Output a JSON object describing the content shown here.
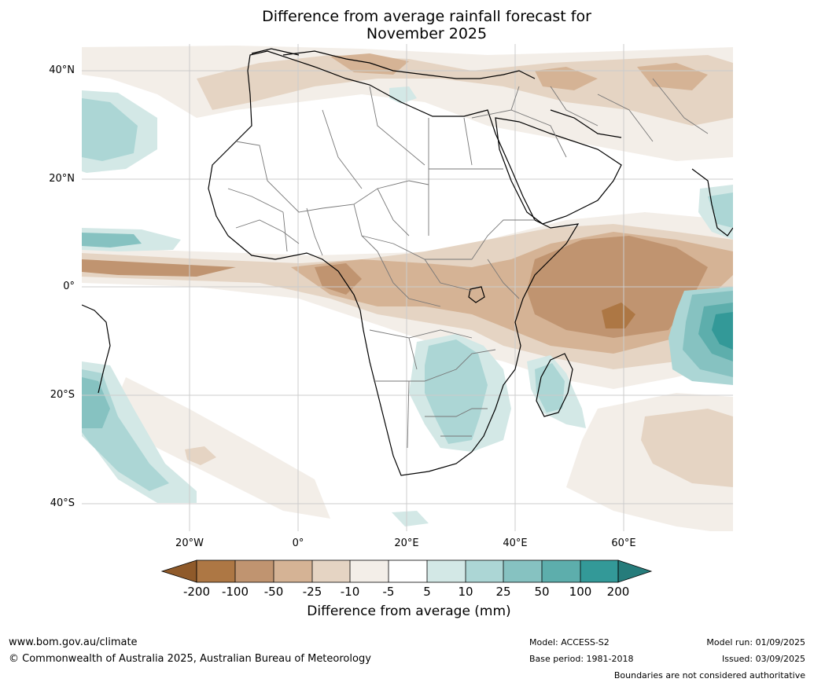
{
  "title": {
    "line1": "Difference from average rainfall forecast for",
    "line2": "November 2025"
  },
  "axes": {
    "lat_labels": [
      "40°N",
      "20°N",
      "0°",
      "20°S",
      "40°S"
    ],
    "lon_labels": [
      "20°W",
      "0°",
      "20°E",
      "40°E",
      "60°E"
    ]
  },
  "legend": {
    "ticks": [
      "-200",
      "-100",
      "-50",
      "-25",
      "-10",
      "-5",
      "5",
      "10",
      "25",
      "50",
      "100",
      "200"
    ],
    "colors": [
      "#8f5a2a",
      "#ad7744",
      "#c09470",
      "#d5b395",
      "#e5d4c3",
      "#f3eee8",
      "#ffffff",
      "#d3e8e6",
      "#acd6d5",
      "#86c2c1",
      "#5daeac",
      "#339998",
      "#267c7b"
    ],
    "label": "Difference from average (mm)"
  },
  "footer": {
    "url": "www.bom.gov.au/climate",
    "copyright": "© Commonwealth of Australia 2025, Australian Bureau of Meteorology",
    "model": "Model: ACCESS-S2",
    "base_period": "Base period: 1981-2018",
    "model_run": "Model run: 01/09/2025",
    "issued": "Issued: 03/09/2025",
    "disclaimer": "Boundaries are not considered authoritative"
  }
}
